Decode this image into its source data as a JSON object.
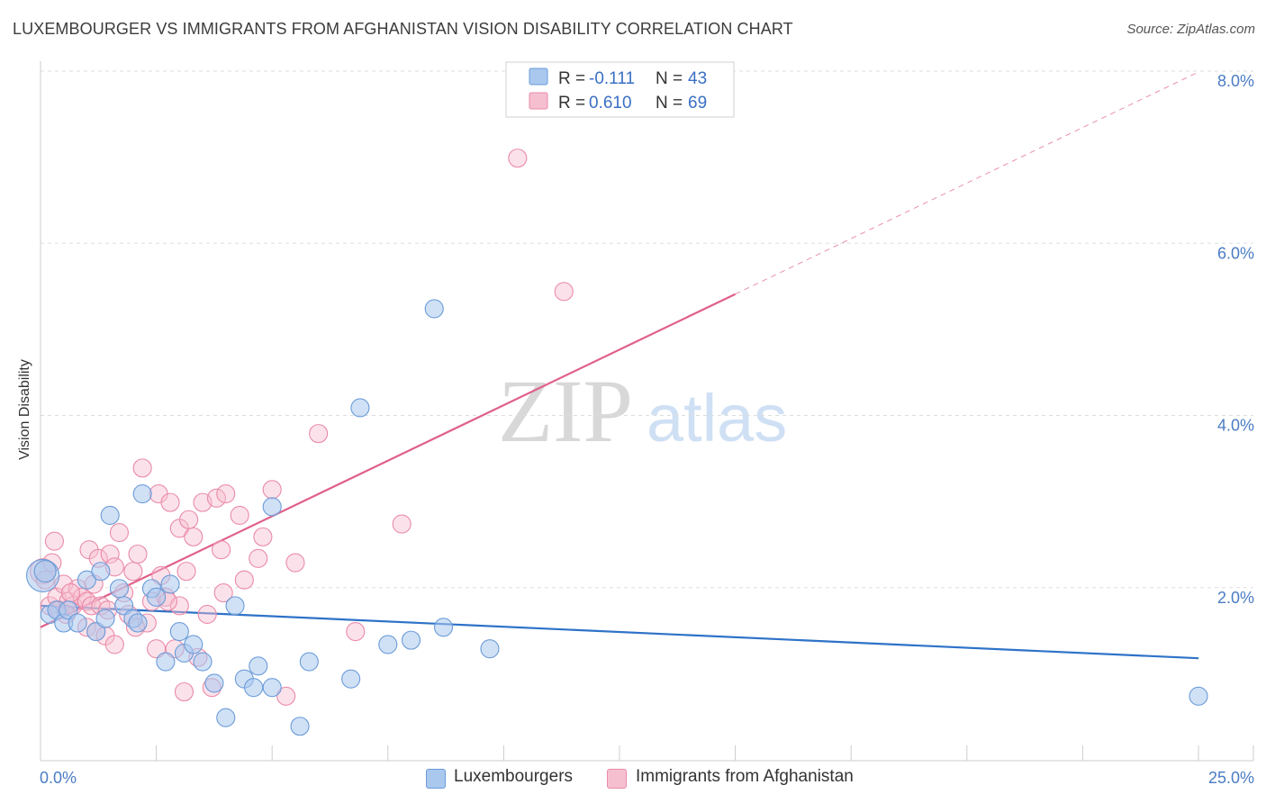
{
  "title": "LUXEMBOURGER VS IMMIGRANTS FROM AFGHANISTAN VISION DISABILITY CORRELATION CHART",
  "source": "Source: ZipAtlas.com",
  "watermark": {
    "zip": "ZIP",
    "atlas": "atlas"
  },
  "legend_top": {
    "r_label": "R =",
    "n_label": "N =",
    "series": [
      {
        "r": "-0.111",
        "n": "43"
      },
      {
        "r": "0.610",
        "n": "69"
      }
    ]
  },
  "legend_bottom": [
    "Luxembourgers",
    "Immigrants from Afghanistan"
  ],
  "colors": {
    "blue_fill": "#aac8ee",
    "blue_stroke": "#6a9bd8",
    "blue_line": "#2e72c8",
    "pink_fill": "#f6bfd0",
    "pink_stroke": "#ea8aa8",
    "pink_line": "#e0608a",
    "grid": "#dddddd",
    "tick_text": "#4a7cc4"
  },
  "chart_data": {
    "type": "scatter",
    "title": "LUXEMBOURGER VS IMMIGRANTS FROM AFGHANISTAN VISION DISABILITY CORRELATION CHART",
    "xlabel": "",
    "ylabel": "Vision Disability",
    "xlim": [
      0,
      25
    ],
    "ylim": [
      0,
      8.0
    ],
    "x_tick_labels": [
      "0.0%",
      "25.0%"
    ],
    "y_ticks": [
      2.0,
      4.0,
      6.0,
      8.0
    ],
    "y_tick_labels": [
      "2.0%",
      "4.0%",
      "6.0%",
      "8.0%"
    ],
    "grid": true,
    "series": [
      {
        "name": "Luxembourgers",
        "r": -0.111,
        "n": 43,
        "trend": {
          "x": [
            0,
            25
          ],
          "y": [
            1.8,
            1.19
          ],
          "dashed_from": null
        },
        "points": [
          [
            0.05,
            2.15,
            18
          ],
          [
            0.2,
            1.7,
            10
          ],
          [
            0.35,
            1.75,
            10
          ],
          [
            0.5,
            1.6,
            10
          ],
          [
            0.6,
            1.75,
            10
          ],
          [
            0.8,
            1.6,
            10
          ],
          [
            1.0,
            2.1,
            10
          ],
          [
            1.2,
            1.5,
            10
          ],
          [
            1.3,
            2.2,
            10
          ],
          [
            1.4,
            1.65,
            10
          ],
          [
            1.5,
            2.85,
            10
          ],
          [
            1.7,
            2.0,
            10
          ],
          [
            1.8,
            1.8,
            10
          ],
          [
            2.0,
            1.65,
            10
          ],
          [
            2.1,
            1.6,
            10
          ],
          [
            2.2,
            3.1,
            10
          ],
          [
            2.4,
            2.0,
            10
          ],
          [
            2.5,
            1.9,
            10
          ],
          [
            2.7,
            1.15,
            10
          ],
          [
            2.8,
            2.05,
            10
          ],
          [
            3.0,
            1.5,
            10
          ],
          [
            3.1,
            1.25,
            10
          ],
          [
            3.3,
            1.35,
            10
          ],
          [
            3.5,
            1.15,
            10
          ],
          [
            3.75,
            0.9,
            10
          ],
          [
            4.0,
            0.5,
            10
          ],
          [
            4.2,
            1.8,
            10
          ],
          [
            4.4,
            0.95,
            10
          ],
          [
            4.6,
            0.85,
            10
          ],
          [
            4.7,
            1.1,
            10
          ],
          [
            5.0,
            2.95,
            10
          ],
          [
            5.0,
            0.85,
            10
          ],
          [
            5.6,
            0.4,
            10
          ],
          [
            5.8,
            1.15,
            10
          ],
          [
            6.7,
            0.95,
            10
          ],
          [
            6.9,
            4.1,
            10
          ],
          [
            7.5,
            1.35,
            10
          ],
          [
            8.0,
            1.4,
            10
          ],
          [
            8.5,
            5.25,
            10
          ],
          [
            8.7,
            1.55,
            10
          ],
          [
            9.7,
            1.3,
            10
          ],
          [
            25.0,
            0.75,
            10
          ],
          [
            0.1,
            2.2,
            12
          ]
        ]
      },
      {
        "name": "Immigrants from Afghanistan",
        "r": 0.61,
        "n": 69,
        "trend": {
          "x": [
            0,
            25
          ],
          "y": [
            1.55,
            8.0
          ],
          "dashed_from": 15.0
        },
        "points": [
          [
            0.05,
            2.2,
            14
          ],
          [
            0.1,
            2.1,
            10
          ],
          [
            0.2,
            1.8,
            10
          ],
          [
            0.3,
            2.55,
            10
          ],
          [
            0.35,
            1.9,
            10
          ],
          [
            0.4,
            1.75,
            10
          ],
          [
            0.5,
            2.05,
            10
          ],
          [
            0.6,
            1.85,
            10
          ],
          [
            0.7,
            1.8,
            10
          ],
          [
            0.8,
            2.0,
            10
          ],
          [
            0.9,
            1.9,
            10
          ],
          [
            1.0,
            1.85,
            10
          ],
          [
            1.0,
            1.55,
            10
          ],
          [
            1.05,
            2.45,
            10
          ],
          [
            1.1,
            1.8,
            10
          ],
          [
            1.2,
            1.5,
            10
          ],
          [
            1.25,
            2.35,
            10
          ],
          [
            1.3,
            1.8,
            10
          ],
          [
            1.4,
            1.45,
            10
          ],
          [
            1.5,
            2.4,
            10
          ],
          [
            1.6,
            2.25,
            10
          ],
          [
            1.6,
            1.35,
            10
          ],
          [
            1.7,
            2.65,
            10
          ],
          [
            1.8,
            1.95,
            10
          ],
          [
            1.9,
            1.7,
            10
          ],
          [
            2.0,
            2.2,
            10
          ],
          [
            2.1,
            2.4,
            10
          ],
          [
            2.2,
            3.4,
            10
          ],
          [
            2.3,
            1.6,
            10
          ],
          [
            2.4,
            1.85,
            10
          ],
          [
            2.5,
            1.3,
            10
          ],
          [
            2.55,
            3.1,
            10
          ],
          [
            2.6,
            2.15,
            10
          ],
          [
            2.7,
            1.9,
            10
          ],
          [
            2.8,
            3.0,
            10
          ],
          [
            2.9,
            1.3,
            10
          ],
          [
            3.0,
            2.7,
            10
          ],
          [
            3.0,
            1.8,
            10
          ],
          [
            3.1,
            0.8,
            10
          ],
          [
            3.2,
            2.8,
            10
          ],
          [
            3.3,
            2.6,
            10
          ],
          [
            3.4,
            1.2,
            10
          ],
          [
            3.5,
            3.0,
            10
          ],
          [
            3.6,
            1.7,
            10
          ],
          [
            3.7,
            0.85,
            10
          ],
          [
            3.8,
            3.05,
            10
          ],
          [
            3.9,
            2.45,
            10
          ],
          [
            3.95,
            1.95,
            10
          ],
          [
            4.0,
            3.1,
            10
          ],
          [
            4.3,
            2.85,
            10
          ],
          [
            4.4,
            2.1,
            10
          ],
          [
            4.7,
            2.35,
            10
          ],
          [
            4.8,
            2.6,
            10
          ],
          [
            5.0,
            3.15,
            10
          ],
          [
            5.3,
            0.75,
            10
          ],
          [
            5.5,
            2.3,
            10
          ],
          [
            6.0,
            3.8,
            10
          ],
          [
            6.8,
            1.5,
            10
          ],
          [
            7.8,
            2.75,
            10
          ],
          [
            10.3,
            7.0,
            10
          ],
          [
            11.3,
            5.45,
            10
          ],
          [
            0.55,
            1.7,
            10
          ],
          [
            1.15,
            2.05,
            10
          ],
          [
            1.45,
            1.75,
            10
          ],
          [
            2.05,
            1.55,
            10
          ],
          [
            2.75,
            1.85,
            10
          ],
          [
            3.15,
            2.2,
            10
          ],
          [
            0.25,
            2.3,
            10
          ],
          [
            0.65,
            1.95,
            10
          ]
        ]
      }
    ]
  }
}
